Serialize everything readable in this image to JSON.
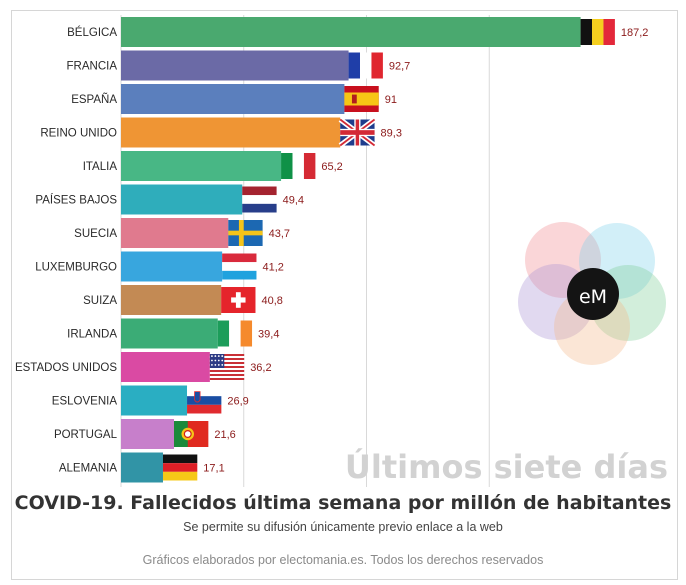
{
  "title": "COVID-19. Fallecidos última semana por millón de habitantes",
  "subtitle": "Se permite su difusión únicamente previo enlace a la web",
  "footer": "Gráficos elaborados por electomania.es. Todos los derechos reservados",
  "watermark": "Últimos siete días",
  "logo_text": "eM",
  "chart_data": {
    "type": "bar",
    "orientation": "horizontal",
    "categories": [
      "BÉLGICA",
      "FRANCIA",
      "ESPAÑA",
      "REINO UNIDO",
      "ITALIA",
      "PAÍSES BAJOS",
      "SUECIA",
      "LUXEMBURGO",
      "SUIZA",
      "IRLANDA",
      "ESTADOS UNIDOS",
      "ESLOVENIA",
      "PORTUGAL",
      "ALEMANIA"
    ],
    "values": [
      187.2,
      92.7,
      91,
      89.3,
      65.2,
      49.4,
      43.7,
      41.2,
      40.8,
      39.4,
      36.2,
      26.9,
      21.6,
      17.1
    ],
    "value_labels": [
      "187,2",
      "92,7",
      "91",
      "89,3",
      "65,2",
      "49,4",
      "43,7",
      "41,2",
      "40,8",
      "39,4",
      "36,2",
      "26,9",
      "21,6",
      "17,1"
    ],
    "bar_colors": [
      "#4aa96f",
      "#6b6aa6",
      "#5b7fbd",
      "#ef9534",
      "#48b785",
      "#2fadbb",
      "#e07a8e",
      "#38a6de",
      "#c38a54",
      "#3bac76",
      "#da4aa3",
      "#2aaec2",
      "#c77fcb",
      "#3194a6"
    ],
    "flags": [
      "belgium",
      "france",
      "spain",
      "united-kingdom",
      "italy",
      "netherlands",
      "sweden",
      "luxembourg",
      "switzerland",
      "ireland",
      "united-states",
      "slovenia",
      "portugal",
      "germany"
    ],
    "xlim": [
      0,
      190
    ],
    "grid": true,
    "label_color": "#8b1a1a"
  }
}
